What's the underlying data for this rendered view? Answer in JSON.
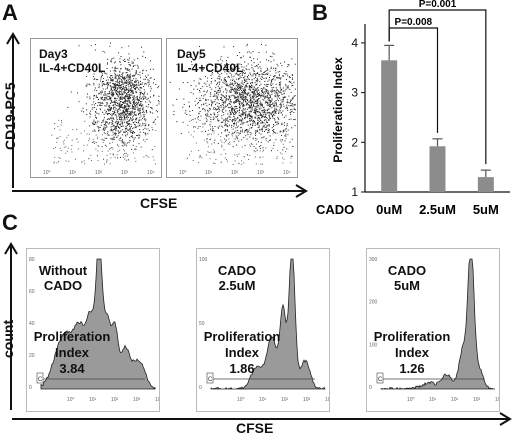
{
  "panel_a": {
    "letter": "A",
    "y_axis_label": "CD19-PC5",
    "x_axis_label": "CFSE",
    "plots": [
      {
        "line1": "Day3",
        "line2": "IL-4+CD40L"
      },
      {
        "line1": "Day5",
        "line2": "IL-4+CD40L"
      }
    ],
    "tick_labels": [
      "10⁰",
      "10¹",
      "10²",
      "10³",
      "10⁴"
    ]
  },
  "panel_b": {
    "letter": "B",
    "chart_data": {
      "type": "bar",
      "categories": [
        "0uM",
        "2.5uM",
        "5uM"
      ],
      "values": [
        3.65,
        1.92,
        1.3
      ],
      "errors": [
        0.3,
        0.15,
        0.14
      ],
      "ylabel": "Proliferation Index",
      "xlabel": "CADO",
      "ylim": [
        1,
        4.3
      ],
      "yticks": [
        1,
        2,
        3,
        4
      ],
      "bar_color": "#8c8c8c",
      "annotations": [
        {
          "text": "P=0.001",
          "from": "0uM",
          "to": "5uM"
        },
        {
          "text": "P=0.008",
          "from": "0uM",
          "to": "2.5uM"
        }
      ]
    }
  },
  "panel_c": {
    "letter": "C",
    "y_axis_label": "count",
    "x_axis_label": "CFSE",
    "gate_label": "C",
    "tick_labels": [
      "10⁰",
      "10¹",
      "10²",
      "10³",
      "10⁴"
    ],
    "histograms": [
      {
        "line1": "Without",
        "line2": "CADO",
        "pi_line1": "Proliferation",
        "pi_line2": "Index",
        "pi_value": "3.84",
        "y_ticks": [
          "80",
          "60",
          "40",
          "20",
          "0"
        ]
      },
      {
        "line1": "CADO",
        "line2": "2.5uM",
        "pi_line1": "Proliferation",
        "pi_line2": "Index",
        "pi_value": "1.86",
        "y_ticks": [
          "100",
          "50",
          "0"
        ]
      },
      {
        "line1": "CADO",
        "line2": "5uM",
        "pi_line1": "Proliferation",
        "pi_line2": "Index",
        "pi_value": "1.26",
        "y_ticks": [
          "300",
          "200",
          "100",
          "0"
        ]
      }
    ]
  }
}
